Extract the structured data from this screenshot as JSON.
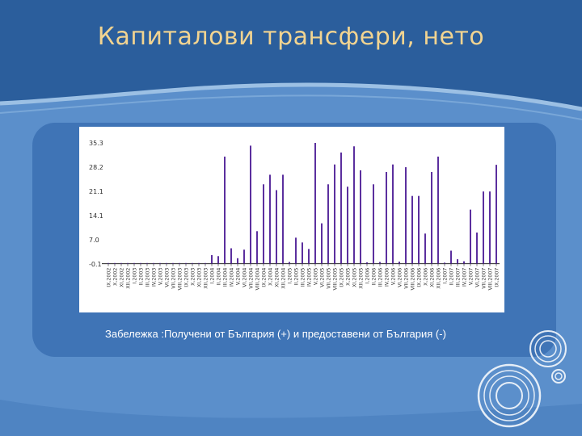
{
  "slide": {
    "title": "Капиталови трансфери, нето",
    "note": "Забележка :Получени от България (+) и предоставени от България (-)"
  },
  "colors": {
    "background": "#5b8fcb",
    "panel": "#3f74b6",
    "title": "#f2d491",
    "bar": "#5b2f9e"
  },
  "chart_data": {
    "type": "bar",
    "title": "",
    "xlabel": "",
    "ylabel": "",
    "ylim": [
      -0.1,
      35.3
    ],
    "yticks": [
      "-0.1",
      "7.0",
      "14.1",
      "21.1",
      "28.2",
      "35.3"
    ],
    "grid": false,
    "legend": "none",
    "categories": [
      "IX.2002",
      "X.2002",
      "XI.2002",
      "XII.2002",
      "I.2003",
      "II.2003",
      "III.2003",
      "IV.2003",
      "V.2003",
      "VI.2003",
      "VII.2003",
      "VIII.2003",
      "IX.2003",
      "X.2003",
      "XI.2003",
      "XII.2003",
      "I.2004",
      "II.2004",
      "III.2004",
      "IV.2004",
      "V.2004",
      "VI.2004",
      "VII.2004",
      "VIII.2004",
      "IX.2004",
      "X.2004",
      "XI.2004",
      "XII.2004",
      "I.2005",
      "II.2005",
      "III.2005",
      "IV.2005",
      "V.2005",
      "VI.2005",
      "VII.2005",
      "VIII.2005",
      "IX.2005",
      "X.2005",
      "XI.2005",
      "XII.2005",
      "I.2006",
      "II.2006",
      "III.2006",
      "IV.2006",
      "V.2006",
      "VI.2006",
      "VII.2006",
      "VIII.2006",
      "IX.2006",
      "X.2006",
      "XI.2006",
      "XII.2006",
      "I.2007",
      "II.2007",
      "III.2007",
      "IV.2007",
      "V.2007",
      "VI.2007",
      "VII.2007",
      "VIII.2007",
      "IX.2007"
    ],
    "values": [
      0,
      0,
      0,
      0,
      0,
      0,
      0,
      0,
      0,
      0,
      0,
      0,
      0,
      0,
      0,
      0,
      2.5,
      2.2,
      31.3,
      4.5,
      1.6,
      4.1,
      34.5,
      9.5,
      23.2,
      26.0,
      21.5,
      26.0,
      0.5,
      7.6,
      6.2,
      4.3,
      35.3,
      11.8,
      23.2,
      29.0,
      32.5,
      22.5,
      34.3,
      27.3,
      0.4,
      23.2,
      0.5,
      26.8,
      29.0,
      0.6,
      28.2,
      19.8,
      19.8,
      8.8,
      26.8,
      31.3,
      0.3,
      3.8,
      1.3,
      0.7,
      15.8,
      9.1,
      21.1,
      21.1,
      28.9
    ]
  }
}
